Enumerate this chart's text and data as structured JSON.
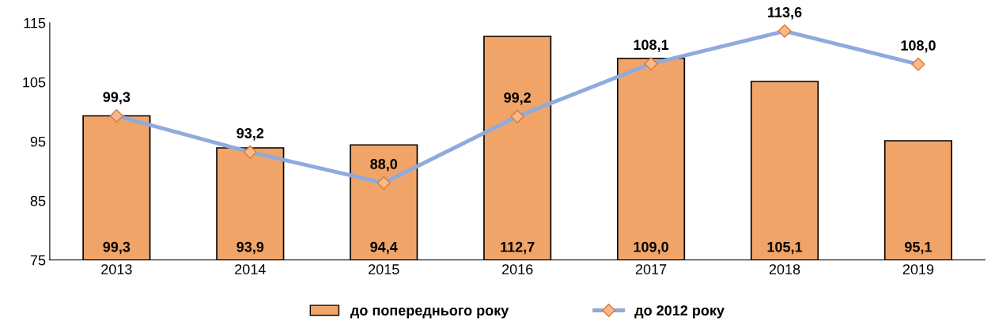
{
  "chart_data": {
    "type": "bar",
    "categories": [
      "2013",
      "2014",
      "2015",
      "2016",
      "2017",
      "2018",
      "2019"
    ],
    "series": [
      {
        "name": "до попереднього року",
        "color": "#f0a468",
        "values": [
          99.3,
          93.9,
          94.4,
          112.7,
          109.0,
          105.1,
          95.1
        ],
        "value_labels": [
          "99,3",
          "93,9",
          "94,4",
          "112,7",
          "109,0",
          "105,1",
          "95,1"
        ]
      },
      {
        "name": "до 2012 року",
        "type": "line",
        "color": "#8faadc",
        "marker": "diamond",
        "values": [
          99.3,
          93.2,
          88.0,
          99.2,
          108.1,
          113.6,
          108.0
        ],
        "value_labels": [
          "99,3",
          "93,2",
          "88,0",
          "99,2",
          "108,1",
          "113,6",
          "108,0"
        ]
      }
    ],
    "ylim": [
      75,
      115
    ],
    "yticks": [
      75,
      85,
      95,
      105,
      115
    ],
    "grid": false,
    "legend": "bottom"
  }
}
